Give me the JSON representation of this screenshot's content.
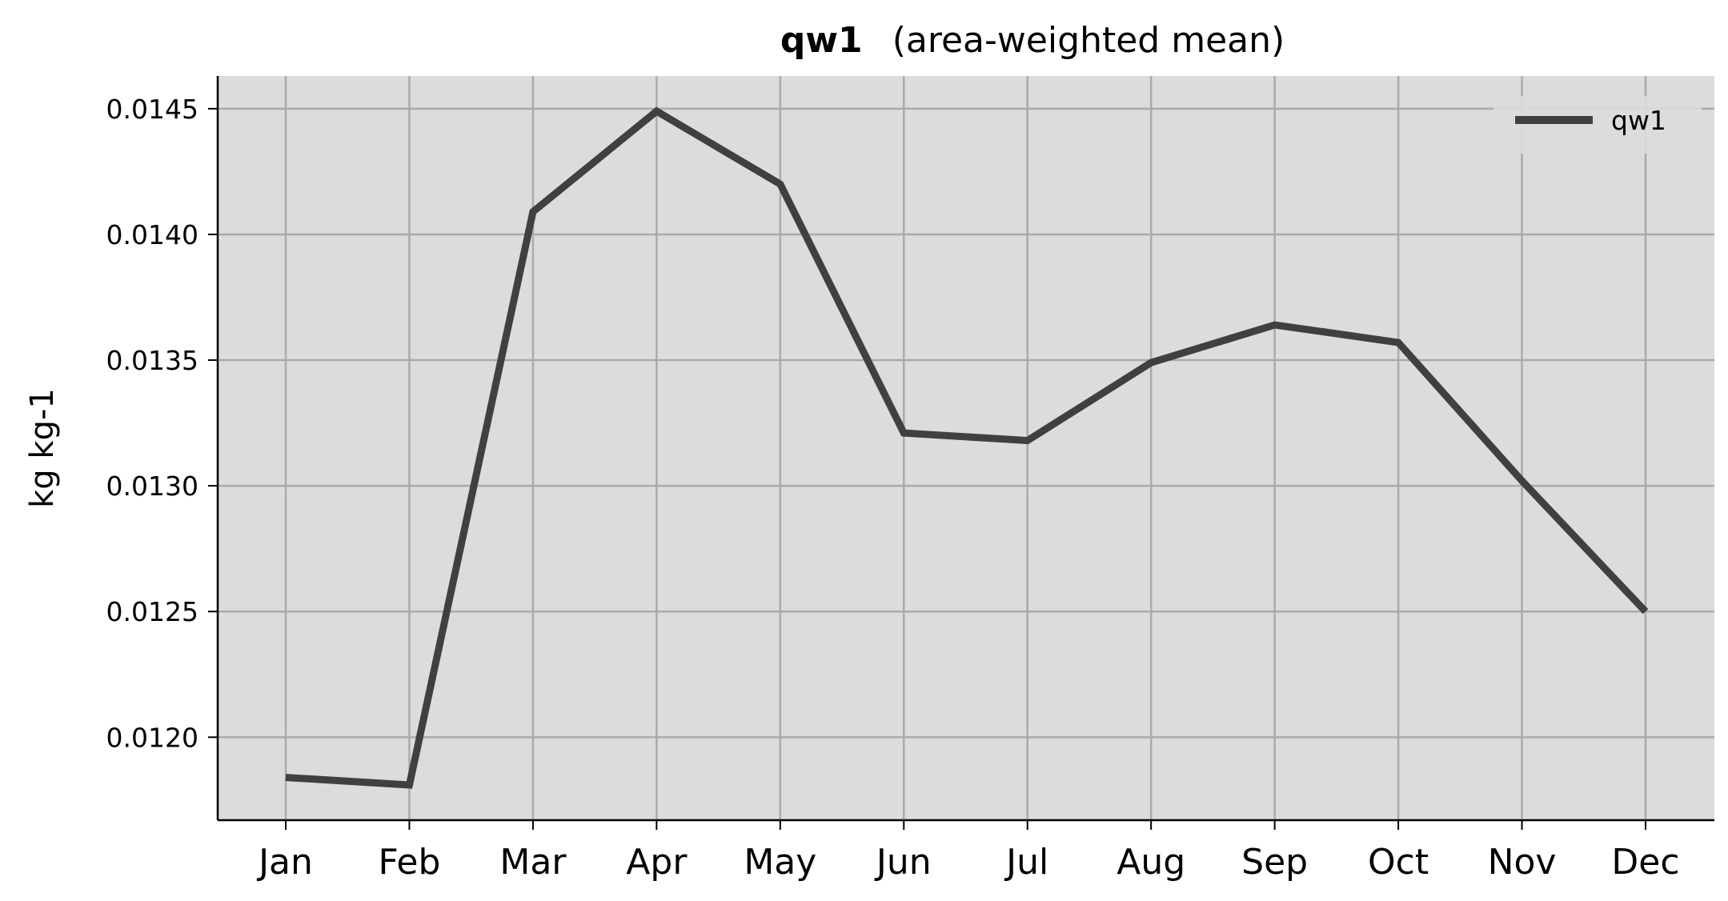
{
  "chart_data": {
    "type": "line",
    "title": "qw1",
    "subtitle": "(area-weighted mean)",
    "xlabel": "",
    "ylabel": "kg kg-1",
    "categories": [
      "Jan",
      "Feb",
      "Mar",
      "Apr",
      "May",
      "Jun",
      "Jul",
      "Aug",
      "Sep",
      "Oct",
      "Nov",
      "Dec"
    ],
    "series": [
      {
        "name": "qw1",
        "color": "#404040",
        "values": [
          0.01184,
          0.01181,
          0.01409,
          0.01449,
          0.0142,
          0.01321,
          0.01318,
          0.01349,
          0.01364,
          0.01357,
          0.01302,
          0.0125
        ]
      }
    ],
    "yticks": [
      "0.0120",
      "0.0125",
      "0.0130",
      "0.0135",
      "0.0140",
      "0.0145"
    ],
    "ylim": [
      0.01167,
      0.01463
    ],
    "grid": true,
    "legend_position": "top-right",
    "plot_background": "#dcdcdc",
    "grid_color": "#aaaaaa"
  }
}
